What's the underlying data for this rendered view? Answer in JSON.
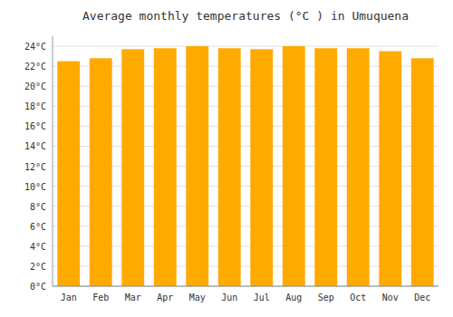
{
  "chart_data": {
    "type": "bar",
    "title": "Average monthly temperatures (°C ) in Umuquena",
    "categories": [
      "Jan",
      "Feb",
      "Mar",
      "Apr",
      "May",
      "Jun",
      "Jul",
      "Aug",
      "Sep",
      "Oct",
      "Nov",
      "Dec"
    ],
    "values": [
      22.5,
      22.8,
      23.7,
      23.8,
      24.0,
      23.8,
      23.7,
      24.0,
      23.8,
      23.8,
      23.5,
      22.8
    ],
    "color": "#FFAA00",
    "ylim": [
      0,
      25
    ],
    "yticks": [
      {
        "value": 0,
        "label": "0°C"
      },
      {
        "value": 2,
        "label": "2°C"
      },
      {
        "value": 4,
        "label": "4°C"
      },
      {
        "value": 6,
        "label": "6°C"
      },
      {
        "value": 8,
        "label": "8°C"
      },
      {
        "value": 10,
        "label": "10°C"
      },
      {
        "value": 12,
        "label": "12°C"
      },
      {
        "value": 14,
        "label": "14°C"
      },
      {
        "value": 16,
        "label": "16°C"
      },
      {
        "value": 18,
        "label": "18°C"
      },
      {
        "value": 20,
        "label": "20°C"
      },
      {
        "value": 22,
        "label": "22°C"
      },
      {
        "value": 24,
        "label": "24°C"
      }
    ],
    "grid": true
  }
}
